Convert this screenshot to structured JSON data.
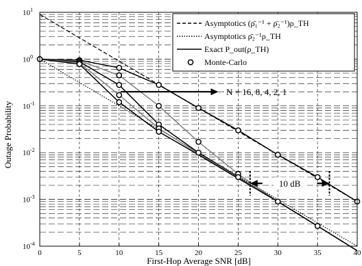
{
  "chart_data": {
    "type": "line",
    "xlabel": "First-Hop Average SNR [dB]",
    "ylabel": "Outage Probability",
    "xlim": [
      0,
      40
    ],
    "ylim_log10": [
      -4,
      1
    ],
    "y_scale": "log",
    "x_ticks": [
      "0",
      "5",
      "10",
      "15",
      "20",
      "25",
      "30",
      "35",
      "40"
    ],
    "y_ticks": [
      {
        "base": "10",
        "exp": "1",
        "value": 10
      },
      {
        "base": "10",
        "exp": "0",
        "value": 1
      },
      {
        "base": "10",
        "exp": "-1",
        "value": 0.1
      },
      {
        "base": "10",
        "exp": "-2",
        "value": 0.01
      },
      {
        "base": "10",
        "exp": "-3",
        "value": 0.001
      },
      {
        "base": "10",
        "exp": "-4",
        "value": 0.0001
      }
    ],
    "grid": true,
    "legend": {
      "placement": "top-right",
      "entries": [
        {
          "style": "dashed",
          "text": "Asymptotics (ρ̄₁⁻¹ + ρ̄₂⁻¹)ρ_TH"
        },
        {
          "style": "dotted",
          "text": "Asymptotics ρ̄₂⁻¹ρ_TH"
        },
        {
          "style": "solid",
          "text": "Exact P_out(ρ_TH)"
        },
        {
          "style": "circle",
          "text": "Monte-Carlo"
        }
      ]
    },
    "series": [
      {
        "name": "",
        "style": "dashed",
        "color": "#000000",
        "points": [
          [
            0,
            9
          ],
          [
            40,
            0.0009
          ]
        ]
      },
      {
        "name": "",
        "style": "dotted",
        "color": "#000000",
        "points": [
          [
            0,
            1
          ],
          [
            40,
            0.0001
          ]
        ]
      },
      {
        "name": "",
        "style": "solid",
        "color": "#000000",
        "N": 1,
        "points": [
          [
            0,
            1
          ],
          [
            5,
            0.95
          ],
          [
            10,
            0.65
          ],
          [
            15,
            0.28
          ],
          [
            20,
            0.09
          ],
          [
            25,
            0.03
          ],
          [
            30,
            0.009
          ],
          [
            35,
            0.003
          ],
          [
            40,
            0.0009
          ]
        ]
      },
      {
        "name": "",
        "style": "solid",
        "color": "#808080",
        "N": 2,
        "points": [
          [
            0,
            1
          ],
          [
            5,
            0.92
          ],
          [
            10,
            0.45
          ],
          [
            15,
            0.1
          ],
          [
            20,
            0.017
          ],
          [
            25,
            0.0035
          ],
          [
            30,
            0.0009
          ],
          [
            35,
            0.00027
          ],
          [
            40,
            8e-05
          ]
        ]
      },
      {
        "name": "",
        "style": "solid",
        "color": "#000000",
        "N": 4,
        "points": [
          [
            0,
            1
          ],
          [
            5,
            0.88
          ],
          [
            10,
            0.28
          ],
          [
            15,
            0.04
          ],
          [
            20,
            0.01
          ],
          [
            25,
            0.003
          ],
          [
            30,
            0.0009
          ],
          [
            35,
            0.00027
          ],
          [
            40,
            8e-05
          ]
        ]
      },
      {
        "name": "",
        "style": "solid",
        "color": "#808080",
        "N": 8,
        "points": [
          [
            0,
            1
          ],
          [
            5,
            0.83
          ],
          [
            10,
            0.17
          ],
          [
            15,
            0.033
          ],
          [
            20,
            0.0095
          ],
          [
            25,
            0.0029
          ],
          [
            30,
            0.0009
          ],
          [
            35,
            0.00027
          ],
          [
            40,
            8e-05
          ]
        ]
      },
      {
        "name": "",
        "style": "solid",
        "color": "#000000",
        "N": 16,
        "points": [
          [
            0,
            1
          ],
          [
            5,
            0.78
          ],
          [
            10,
            0.12
          ],
          [
            15,
            0.028
          ],
          [
            20,
            0.009
          ],
          [
            25,
            0.0028
          ],
          [
            30,
            0.0009
          ],
          [
            35,
            0.00027
          ],
          [
            40,
            8e-05
          ]
        ]
      }
    ],
    "markers": [
      [
        0,
        1
      ],
      [
        5,
        0.95
      ],
      [
        10,
        0.65
      ],
      [
        15,
        0.28
      ],
      [
        20,
        0.09
      ],
      [
        25,
        0.03
      ],
      [
        30,
        0.009
      ],
      [
        35,
        0.003
      ],
      [
        40,
        0.0009
      ],
      [
        5,
        0.92
      ],
      [
        10,
        0.45
      ],
      [
        15,
        0.1
      ],
      [
        20,
        0.017
      ],
      [
        25,
        0.0035
      ],
      [
        30,
        0.0009
      ],
      [
        35,
        0.00027
      ],
      [
        5,
        0.88
      ],
      [
        10,
        0.28
      ],
      [
        15,
        0.04
      ],
      [
        20,
        0.01
      ],
      [
        25,
        0.003
      ],
      [
        5,
        0.83
      ],
      [
        10,
        0.17
      ],
      [
        15,
        0.033
      ],
      [
        5,
        0.78
      ],
      [
        10,
        0.12
      ],
      [
        15,
        0.028
      ]
    ],
    "annotations": [
      {
        "text": "N = 16, 8, 4, 2, 1",
        "arrow": {
          "from": [
            10.2,
            0.2
          ],
          "to": [
            22.5,
            0.2
          ]
        },
        "text_at": [
          23.5,
          0.2
        ]
      },
      {
        "text": "10 dB",
        "bracket": {
          "x1": 26.5,
          "x2": 36.5,
          "y": 0.0022
        }
      }
    ]
  }
}
